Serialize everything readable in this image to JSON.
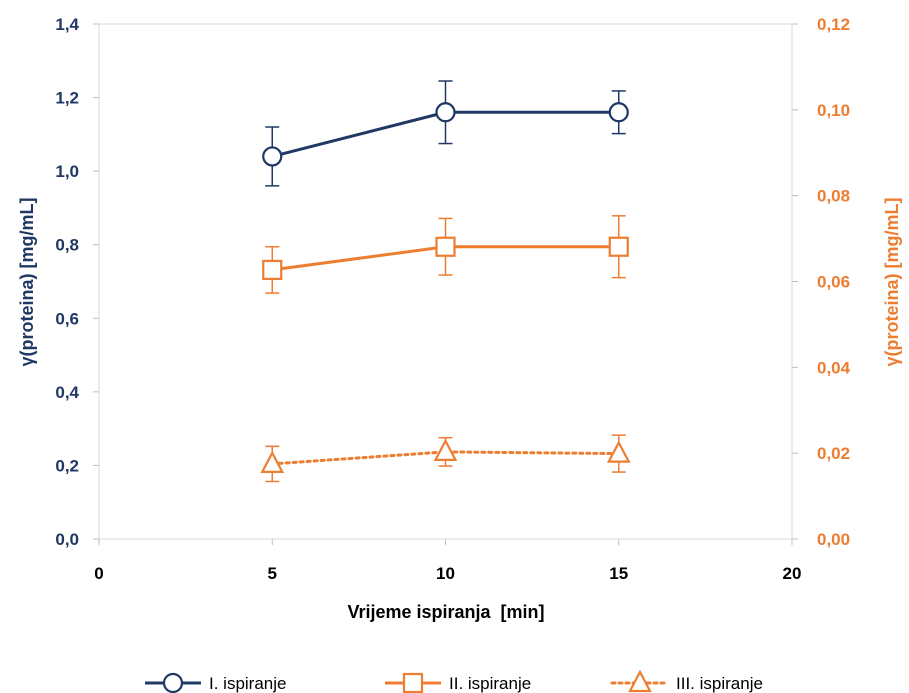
{
  "chart_data": {
    "type": "line",
    "xlabel": "Vrijeme ispiranja  [min]",
    "ylabel_left": "γ(proteina) [mg/mL]",
    "ylabel_right": "γ(proteina) [mg/mL]",
    "xlim": [
      0,
      20
    ],
    "xticks": [
      "0",
      "5",
      "10",
      "15",
      "20"
    ],
    "ylim_left": [
      0,
      1.4
    ],
    "yticks_left": [
      "0,0",
      "0,2",
      "0,4",
      "0,6",
      "0,8",
      "1,0",
      "1,2",
      "1,4"
    ],
    "ylim_right": [
      0,
      0.12
    ],
    "yticks_right": [
      "0,00",
      "0,02",
      "0,04",
      "0,06",
      "0,08",
      "0,10",
      "0,12"
    ],
    "grid": false,
    "legend_position": "bottom",
    "colors": {
      "navy": "#1f3864",
      "orange": "#ed7d31"
    },
    "series": [
      {
        "name": "I. ispiranje",
        "axis": "left",
        "marker": "circle",
        "line": "solid",
        "color": "#1f3864",
        "x": [
          5,
          10,
          15
        ],
        "y": [
          1.04,
          1.16,
          1.16
        ],
        "err": [
          0.08,
          0.085,
          0.058
        ]
      },
      {
        "name": "II. ispiranje",
        "axis": "right",
        "marker": "square",
        "line": "solid",
        "color": "#ed7d31",
        "x": [
          5,
          10,
          15
        ],
        "y": [
          0.0627,
          0.0681,
          0.0681
        ],
        "err": [
          0.0054,
          0.0066,
          0.0072
        ]
      },
      {
        "name": "III. ispiranje",
        "axis": "right",
        "marker": "triangle",
        "line": "dotted",
        "color": "#ed7d31",
        "x": [
          5,
          10,
          15
        ],
        "y": [
          0.0175,
          0.0203,
          0.0199
        ],
        "err": [
          0.0041,
          0.0033,
          0.0043
        ]
      }
    ]
  }
}
